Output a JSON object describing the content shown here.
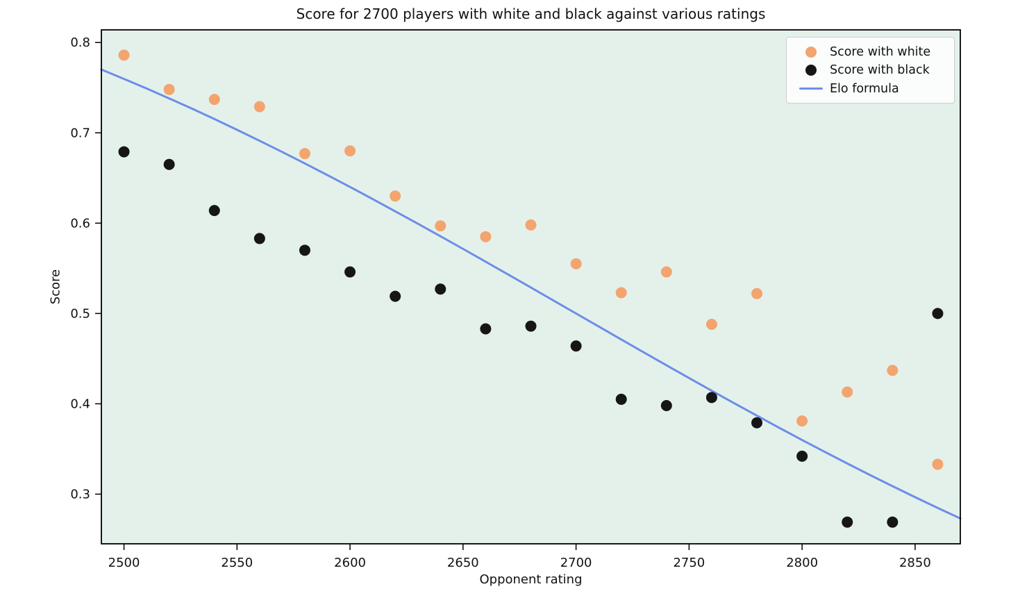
{
  "figure": {
    "title": "Score for 2700 players with white and black against various ratings",
    "xlabel": "Opponent rating",
    "ylabel": "Score"
  },
  "legend": {
    "items": [
      {
        "label": "Score with white",
        "marker": "dot",
        "color": "#F3A46F"
      },
      {
        "label": "Score with black",
        "marker": "dot",
        "color": "#161616"
      },
      {
        "label": "Elo formula",
        "marker": "line",
        "color": "#6C8EE6"
      }
    ]
  },
  "chart_data": {
    "type": "scatter",
    "title": "Score for 2700 players with white and black against various ratings",
    "xlabel": "Opponent rating",
    "ylabel": "Score",
    "xlim": [
      2490,
      2870
    ],
    "ylim": [
      0.245,
      0.814
    ],
    "x_ticks": [
      2500,
      2550,
      2600,
      2650,
      2700,
      2750,
      2800,
      2850
    ],
    "y_ticks": [
      0.3,
      0.4,
      0.5,
      0.6,
      0.7,
      0.8
    ],
    "grid": false,
    "legend_position": "upper right",
    "plot_background": "#E4F1EB",
    "axis_color": "#000000",
    "categories": [
      2500,
      2520,
      2540,
      2560,
      2580,
      2600,
      2620,
      2640,
      2660,
      2680,
      2700,
      2720,
      2740,
      2760,
      2780,
      2800,
      2820,
      2840,
      2860
    ],
    "series": [
      {
        "name": "Score with white",
        "type": "scatter",
        "color": "#F3A46F",
        "x": [
          2500,
          2520,
          2540,
          2560,
          2580,
          2600,
          2620,
          2640,
          2660,
          2680,
          2700,
          2720,
          2740,
          2760,
          2780,
          2800,
          2820,
          2840,
          2860
        ],
        "values": [
          0.786,
          0.748,
          0.737,
          0.729,
          0.677,
          0.68,
          0.63,
          0.597,
          0.585,
          0.598,
          0.555,
          0.523,
          0.546,
          0.488,
          0.522,
          0.381,
          0.413,
          0.437,
          0.333
        ]
      },
      {
        "name": "Score with black",
        "type": "scatter",
        "color": "#161616",
        "x": [
          2500,
          2520,
          2540,
          2560,
          2580,
          2600,
          2620,
          2640,
          2660,
          2680,
          2700,
          2720,
          2740,
          2760,
          2780,
          2800,
          2820,
          2840,
          2860
        ],
        "values": [
          0.679,
          0.665,
          0.614,
          0.583,
          0.57,
          0.546,
          0.519,
          0.527,
          0.483,
          0.486,
          0.464,
          0.405,
          0.398,
          0.407,
          0.379,
          0.342,
          0.269,
          0.269,
          0.5
        ]
      },
      {
        "name": "Elo formula",
        "type": "line",
        "color": "#6C8EE6",
        "x": [
          2490,
          2500,
          2510,
          2520,
          2530,
          2540,
          2550,
          2560,
          2570,
          2580,
          2590,
          2600,
          2610,
          2620,
          2630,
          2640,
          2650,
          2660,
          2670,
          2680,
          2690,
          2700,
          2710,
          2720,
          2730,
          2740,
          2750,
          2760,
          2770,
          2780,
          2790,
          2800,
          2810,
          2820,
          2830,
          2840,
          2850,
          2860,
          2870
        ],
        "values": [
          0.7701,
          0.7597,
          0.7491,
          0.7381,
          0.7269,
          0.7153,
          0.7034,
          0.6912,
          0.6788,
          0.6661,
          0.6532,
          0.6401,
          0.6267,
          0.6131,
          0.5994,
          0.5855,
          0.5715,
          0.5573,
          0.5431,
          0.5288,
          0.5144,
          0.5,
          0.4856,
          0.4712,
          0.4569,
          0.4427,
          0.4285,
          0.4145,
          0.4006,
          0.3869,
          0.3733,
          0.3599,
          0.3468,
          0.3339,
          0.3212,
          0.3088,
          0.2966,
          0.2847,
          0.2731
        ]
      }
    ]
  }
}
